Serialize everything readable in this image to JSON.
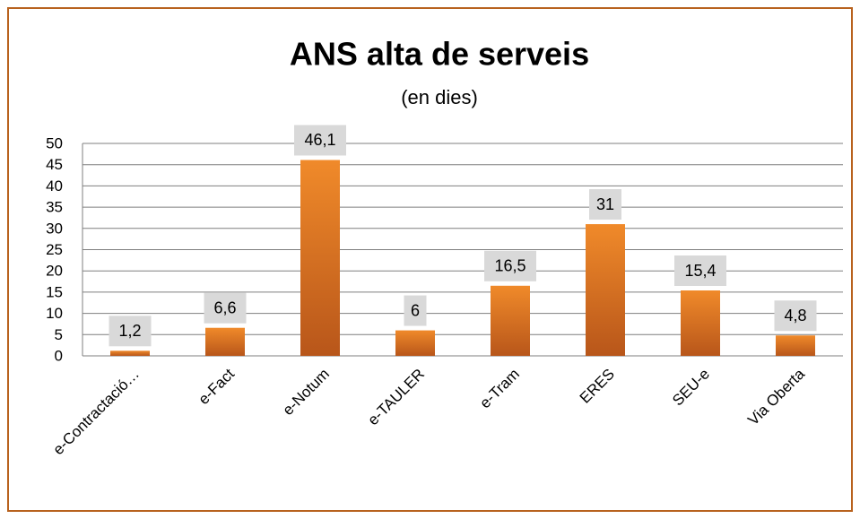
{
  "chart_data": {
    "type": "bar",
    "title": "ANS alta de serveis",
    "subtitle": "(en dies)",
    "categories": [
      "e-Contractació…",
      "e-Fact",
      "e-Notum",
      "e-TAULER",
      "e-Tram",
      "ERES",
      "SEU-e",
      "Via Oberta"
    ],
    "values": [
      1.2,
      6.6,
      46.1,
      6,
      16.5,
      31,
      15.4,
      4.8
    ],
    "value_labels": [
      "1,2",
      "6,6",
      "46,1",
      "6",
      "16,5",
      "31",
      "15,4",
      "4,8"
    ],
    "color": "#e07b22",
    "ylim": [
      0,
      50
    ],
    "yticks": [
      0,
      5,
      10,
      15,
      20,
      25,
      30,
      35,
      40,
      45,
      50
    ],
    "grid": true
  }
}
